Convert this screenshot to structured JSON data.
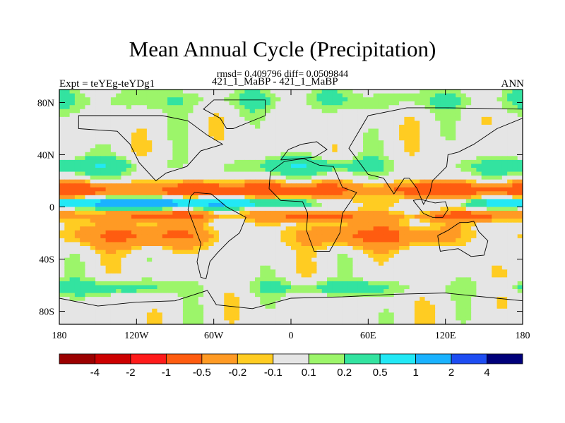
{
  "header": {
    "title": "Mean Annual Cycle (Precipitation)",
    "stats": "rmsd= 0.409796 diff= 0.0509844",
    "experiment": "Expt = teYEg-teYDg1",
    "cases": "421_1_MaBP - 421_1_MaBP",
    "season": "ANN"
  },
  "chart_data": {
    "type": "heatmap",
    "title": "Mean Annual Cycle (Precipitation)",
    "subtitle": "421_1_MaBP - 421_1_MaBP",
    "variable": "precipitation difference",
    "rmsd": 0.409796,
    "diff": 0.0509844,
    "xlim": [
      -180,
      180
    ],
    "ylim": [
      -90,
      90
    ],
    "x_ticks": [
      {
        "value": -180,
        "label": "180"
      },
      {
        "value": -120,
        "label": "120W"
      },
      {
        "value": -60,
        "label": "60W"
      },
      {
        "value": 0,
        "label": "0"
      },
      {
        "value": 60,
        "label": "60E"
      },
      {
        "value": 120,
        "label": "120E"
      },
      {
        "value": 180,
        "label": "180"
      }
    ],
    "y_ticks": [
      {
        "value": 80,
        "label": "80N"
      },
      {
        "value": 40,
        "label": "40N"
      },
      {
        "value": 0,
        "label": "0"
      },
      {
        "value": -40,
        "label": "40S"
      },
      {
        "value": -80,
        "label": "80S"
      }
    ],
    "colorbar": {
      "labels": [
        "-4",
        "-2",
        "-1",
        "-0.5",
        "-0.2",
        "-0.1",
        "0.1",
        "0.2",
        "0.5",
        "1",
        "2",
        "4"
      ],
      "colors": [
        "#9b0000",
        "#cc0000",
        "#ff1b1b",
        "#ff5c10",
        "#ff9a24",
        "#ffcc22",
        "#e5e5e5",
        "#9cf56a",
        "#33e3a0",
        "#22e8f5",
        "#1ab2ff",
        "#1e4df2",
        "#00007a"
      ]
    },
    "bands": [
      {
        "lat": [
          70,
          90
        ],
        "value": 0.15,
        "note": "green north polar band"
      },
      {
        "lat": [
          42,
          70
        ],
        "value": 0.0,
        "note": "grey mid-latitude"
      },
      {
        "lat": [
          20,
          40
        ],
        "value": 0.3,
        "note": "teal/green streaks"
      },
      {
        "lat": [
          8,
          20
        ],
        "value": -0.7,
        "note": "orange/red"
      },
      {
        "lat": [
          -2,
          8
        ],
        "value": 0.8,
        "note": "cyan equatorial"
      },
      {
        "lat": [
          -10,
          -2
        ],
        "value": -0.4,
        "note": "orange south of equator"
      },
      {
        "lat": [
          -35,
          -10
        ],
        "value": -0.4,
        "note": "orange/red southern tropics"
      },
      {
        "lat": [
          -55,
          -35
        ],
        "value": 0.0,
        "note": "grey with small patches"
      },
      {
        "lat": [
          -70,
          -55
        ],
        "value": 0.25,
        "note": "green/teal southern ocean"
      },
      {
        "lat": [
          -90,
          -70
        ],
        "value": 0.0,
        "note": "grey Antarctica"
      }
    ]
  }
}
